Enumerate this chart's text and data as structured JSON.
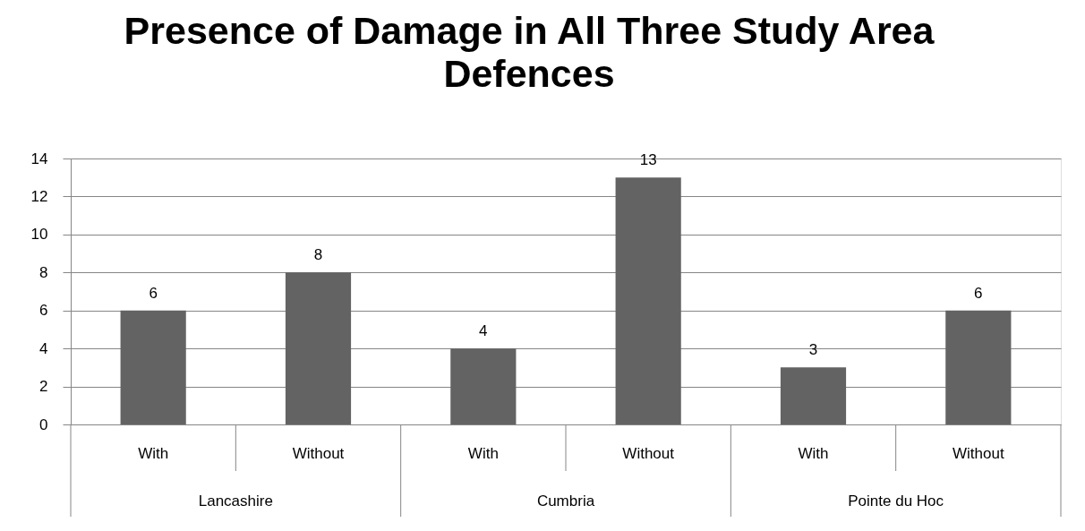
{
  "chart_data": {
    "type": "bar",
    "title": "Presence of Damage in All Three Study Area Defences",
    "categories": [
      "With",
      "Without",
      "With",
      "Without",
      "With",
      "Without"
    ],
    "values": [
      6,
      8,
      4,
      13,
      3,
      6
    ],
    "color": "#636363",
    "ylim": [
      0,
      14
    ],
    "yticks": [
      0,
      2,
      4,
      6,
      8,
      10,
      12,
      14
    ],
    "grid": "y",
    "data_labels": true,
    "annotations": [
      "Lancashire",
      "Cumbria",
      "Pointe du Hoc"
    ]
  }
}
